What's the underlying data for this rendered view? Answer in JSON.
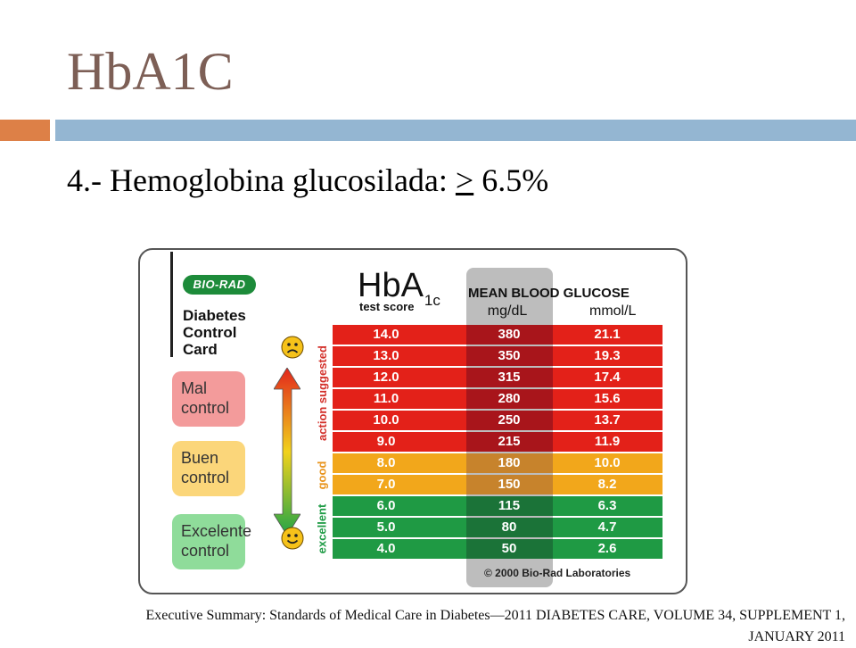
{
  "slide": {
    "title": "HbA1C",
    "bullet_prefix": "4.- Hemoglobina glucosilada: ",
    "bullet_ge": ">",
    "bullet_value": " 6.5%",
    "reference": "Executive Summary: Standards of Medical Care in Diabetes—2011 DIABETES CARE, VOLUME 34, SUPPLEMENT 1, JANUARY 2011"
  },
  "colors": {
    "title": "#7d5f56",
    "rule_accent": "#dd8047",
    "rule_main": "#94b6d2",
    "row_red": "#e32119",
    "row_yellow": "#f2a71b",
    "row_green": "#1f9a44",
    "band_red": "#a8151b",
    "band_yellow": "#c7832c",
    "band_green": "#1b7338"
  },
  "card": {
    "logo": "BIO-RAD",
    "name_line1": "Diabetes",
    "name_line2": "Control",
    "name_line3": "Card",
    "hba_main": "HbA",
    "hba_sub": "1c",
    "hba_caption": "test score",
    "header_mbg": "MEAN BLOOD GLUCOSE",
    "header_mgdl": "mg/dL",
    "header_mmol": "mmol/L",
    "labels": {
      "action": "action suggested",
      "good": "good",
      "excellent": "excellent"
    },
    "badges": [
      {
        "title": "Mal",
        "desc": "control"
      },
      {
        "title": "Buen",
        "desc": "control"
      },
      {
        "title": "Excelente",
        "desc": "control"
      }
    ],
    "icons": {
      "top": "sad-face-icon",
      "bottom": "happy-face-icon",
      "scale": "double-arrow-icon"
    },
    "copyright": "© 2000 Bio-Rad Laboratories",
    "rows": [
      {
        "hba1c": "14.0",
        "mgdl": "380",
        "mmol": "21.1",
        "zone": "red"
      },
      {
        "hba1c": "13.0",
        "mgdl": "350",
        "mmol": "19.3",
        "zone": "red"
      },
      {
        "hba1c": "12.0",
        "mgdl": "315",
        "mmol": "17.4",
        "zone": "red"
      },
      {
        "hba1c": "11.0",
        "mgdl": "280",
        "mmol": "15.6",
        "zone": "red"
      },
      {
        "hba1c": "10.0",
        "mgdl": "250",
        "mmol": "13.7",
        "zone": "red"
      },
      {
        "hba1c": "9.0",
        "mgdl": "215",
        "mmol": "11.9",
        "zone": "red"
      },
      {
        "hba1c": "8.0",
        "mgdl": "180",
        "mmol": "10.0",
        "zone": "yellow"
      },
      {
        "hba1c": "7.0",
        "mgdl": "150",
        "mmol": "8.2",
        "zone": "yellow"
      },
      {
        "hba1c": "6.0",
        "mgdl": "115",
        "mmol": "6.3",
        "zone": "green"
      },
      {
        "hba1c": "5.0",
        "mgdl": "80",
        "mmol": "4.7",
        "zone": "green"
      },
      {
        "hba1c": "4.0",
        "mgdl": "50",
        "mmol": "2.6",
        "zone": "green"
      }
    ]
  }
}
